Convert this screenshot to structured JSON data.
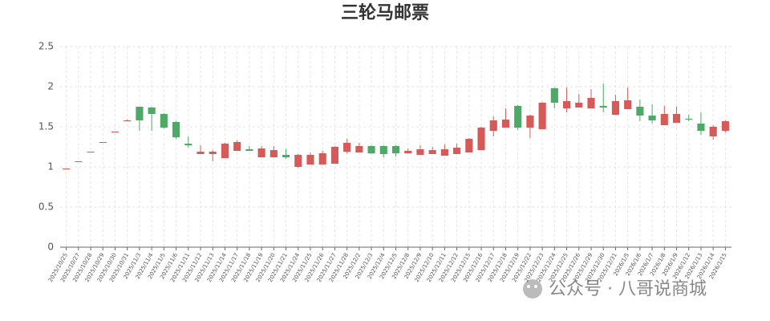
{
  "chart_data": {
    "type": "candlestick",
    "title": "三轮马邮票",
    "categories": [
      "2025/10/25",
      "2025/10/27",
      "2025/10/28",
      "2025/10/29",
      "2025/10/30",
      "2025/10/31",
      "2025/11/3",
      "2025/11/4",
      "2025/11/5",
      "2025/11/6",
      "2025/11/11",
      "2025/11/12",
      "2025/11/13",
      "2025/11/14",
      "2025/11/17",
      "2025/11/18",
      "2025/11/19",
      "2025/11/20",
      "2025/11/21",
      "2025/11/24",
      "2025/11/25",
      "2025/11/26",
      "2025/11/27",
      "2025/11/28",
      "2025/12/2",
      "2025/12/3",
      "2025/12/4",
      "2025/12/5",
      "2025/12/8",
      "2025/12/9",
      "2025/12/10",
      "2025/12/11",
      "2025/12/12",
      "2025/12/15",
      "2025/12/16",
      "2025/12/17",
      "2025/12/18",
      "2025/12/19",
      "2025/12/22",
      "2025/12/23",
      "2025/12/24",
      "2025/12/25",
      "2025/12/26",
      "2025/12/29",
      "2025/12/30",
      "2025/12/31",
      "2026/1/5",
      "2026/1/6",
      "2026/1/7",
      "2026/1/8",
      "2026/1/9",
      "2026/1/12",
      "2026/1/13",
      "2026/1/14",
      "2026/1/15"
    ],
    "open": [
      0.98,
      1.07,
      1.19,
      1.31,
      1.44,
      1.58,
      1.75,
      1.74,
      1.66,
      1.56,
      1.29,
      1.16,
      1.16,
      1.11,
      1.2,
      1.22,
      1.12,
      1.12,
      1.15,
      1.0,
      1.03,
      1.03,
      1.04,
      1.19,
      1.18,
      1.26,
      1.26,
      1.26,
      1.17,
      1.15,
      1.16,
      1.14,
      1.16,
      1.18,
      1.21,
      1.45,
      1.49,
      1.76,
      1.49,
      1.47,
      1.98,
      1.73,
      1.74,
      1.73,
      1.76,
      1.65,
      1.72,
      1.75,
      1.64,
      1.52,
      1.55,
      1.6,
      1.54,
      1.38,
      1.45
    ],
    "close": [
      0.98,
      1.07,
      1.19,
      1.31,
      1.44,
      1.58,
      1.58,
      1.66,
      1.49,
      1.37,
      1.27,
      1.19,
      1.19,
      1.29,
      1.31,
      1.2,
      1.23,
      1.21,
      1.12,
      1.15,
      1.15,
      1.17,
      1.25,
      1.3,
      1.26,
      1.17,
      1.16,
      1.17,
      1.2,
      1.22,
      1.21,
      1.22,
      1.24,
      1.35,
      1.49,
      1.58,
      1.59,
      1.49,
      1.64,
      1.8,
      1.8,
      1.82,
      1.8,
      1.86,
      1.74,
      1.82,
      1.83,
      1.64,
      1.58,
      1.66,
      1.66,
      1.59,
      1.45,
      1.5,
      1.57
    ],
    "high": [
      0.98,
      1.07,
      1.19,
      1.31,
      1.44,
      1.59,
      1.75,
      1.75,
      1.67,
      1.57,
      1.38,
      1.27,
      1.21,
      1.3,
      1.33,
      1.26,
      1.26,
      1.26,
      1.22,
      1.16,
      1.18,
      1.2,
      1.26,
      1.35,
      1.3,
      1.27,
      1.27,
      1.27,
      1.23,
      1.27,
      1.25,
      1.28,
      1.29,
      1.36,
      1.5,
      1.63,
      1.73,
      1.77,
      1.65,
      1.81,
      1.99,
      1.99,
      1.91,
      1.97,
      2.04,
      1.9,
      1.99,
      1.84,
      1.78,
      1.76,
      1.75,
      1.65,
      1.68,
      1.52,
      1.58
    ],
    "low": [
      0.97,
      1.07,
      1.19,
      1.31,
      1.44,
      1.58,
      1.45,
      1.45,
      1.48,
      1.35,
      1.24,
      1.16,
      1.07,
      1.11,
      1.2,
      1.2,
      1.12,
      1.12,
      1.1,
      0.99,
      1.03,
      1.03,
      1.04,
      1.17,
      1.18,
      1.16,
      1.12,
      1.13,
      1.17,
      1.15,
      1.16,
      1.14,
      1.16,
      1.18,
      1.21,
      1.38,
      1.49,
      1.46,
      1.36,
      1.47,
      1.73,
      1.68,
      1.74,
      1.73,
      1.68,
      1.65,
      1.72,
      1.57,
      1.54,
      1.52,
      1.55,
      1.57,
      1.4,
      1.34,
      1.43
    ],
    "up_color": "#d65a57",
    "down_color": "#4caa66",
    "ylim": [
      0,
      2.5
    ],
    "yticks": [
      0,
      0.5,
      1,
      1.5,
      2,
      2.5
    ],
    "grid": true,
    "watermark": "公众号 · 八哥说商城"
  }
}
